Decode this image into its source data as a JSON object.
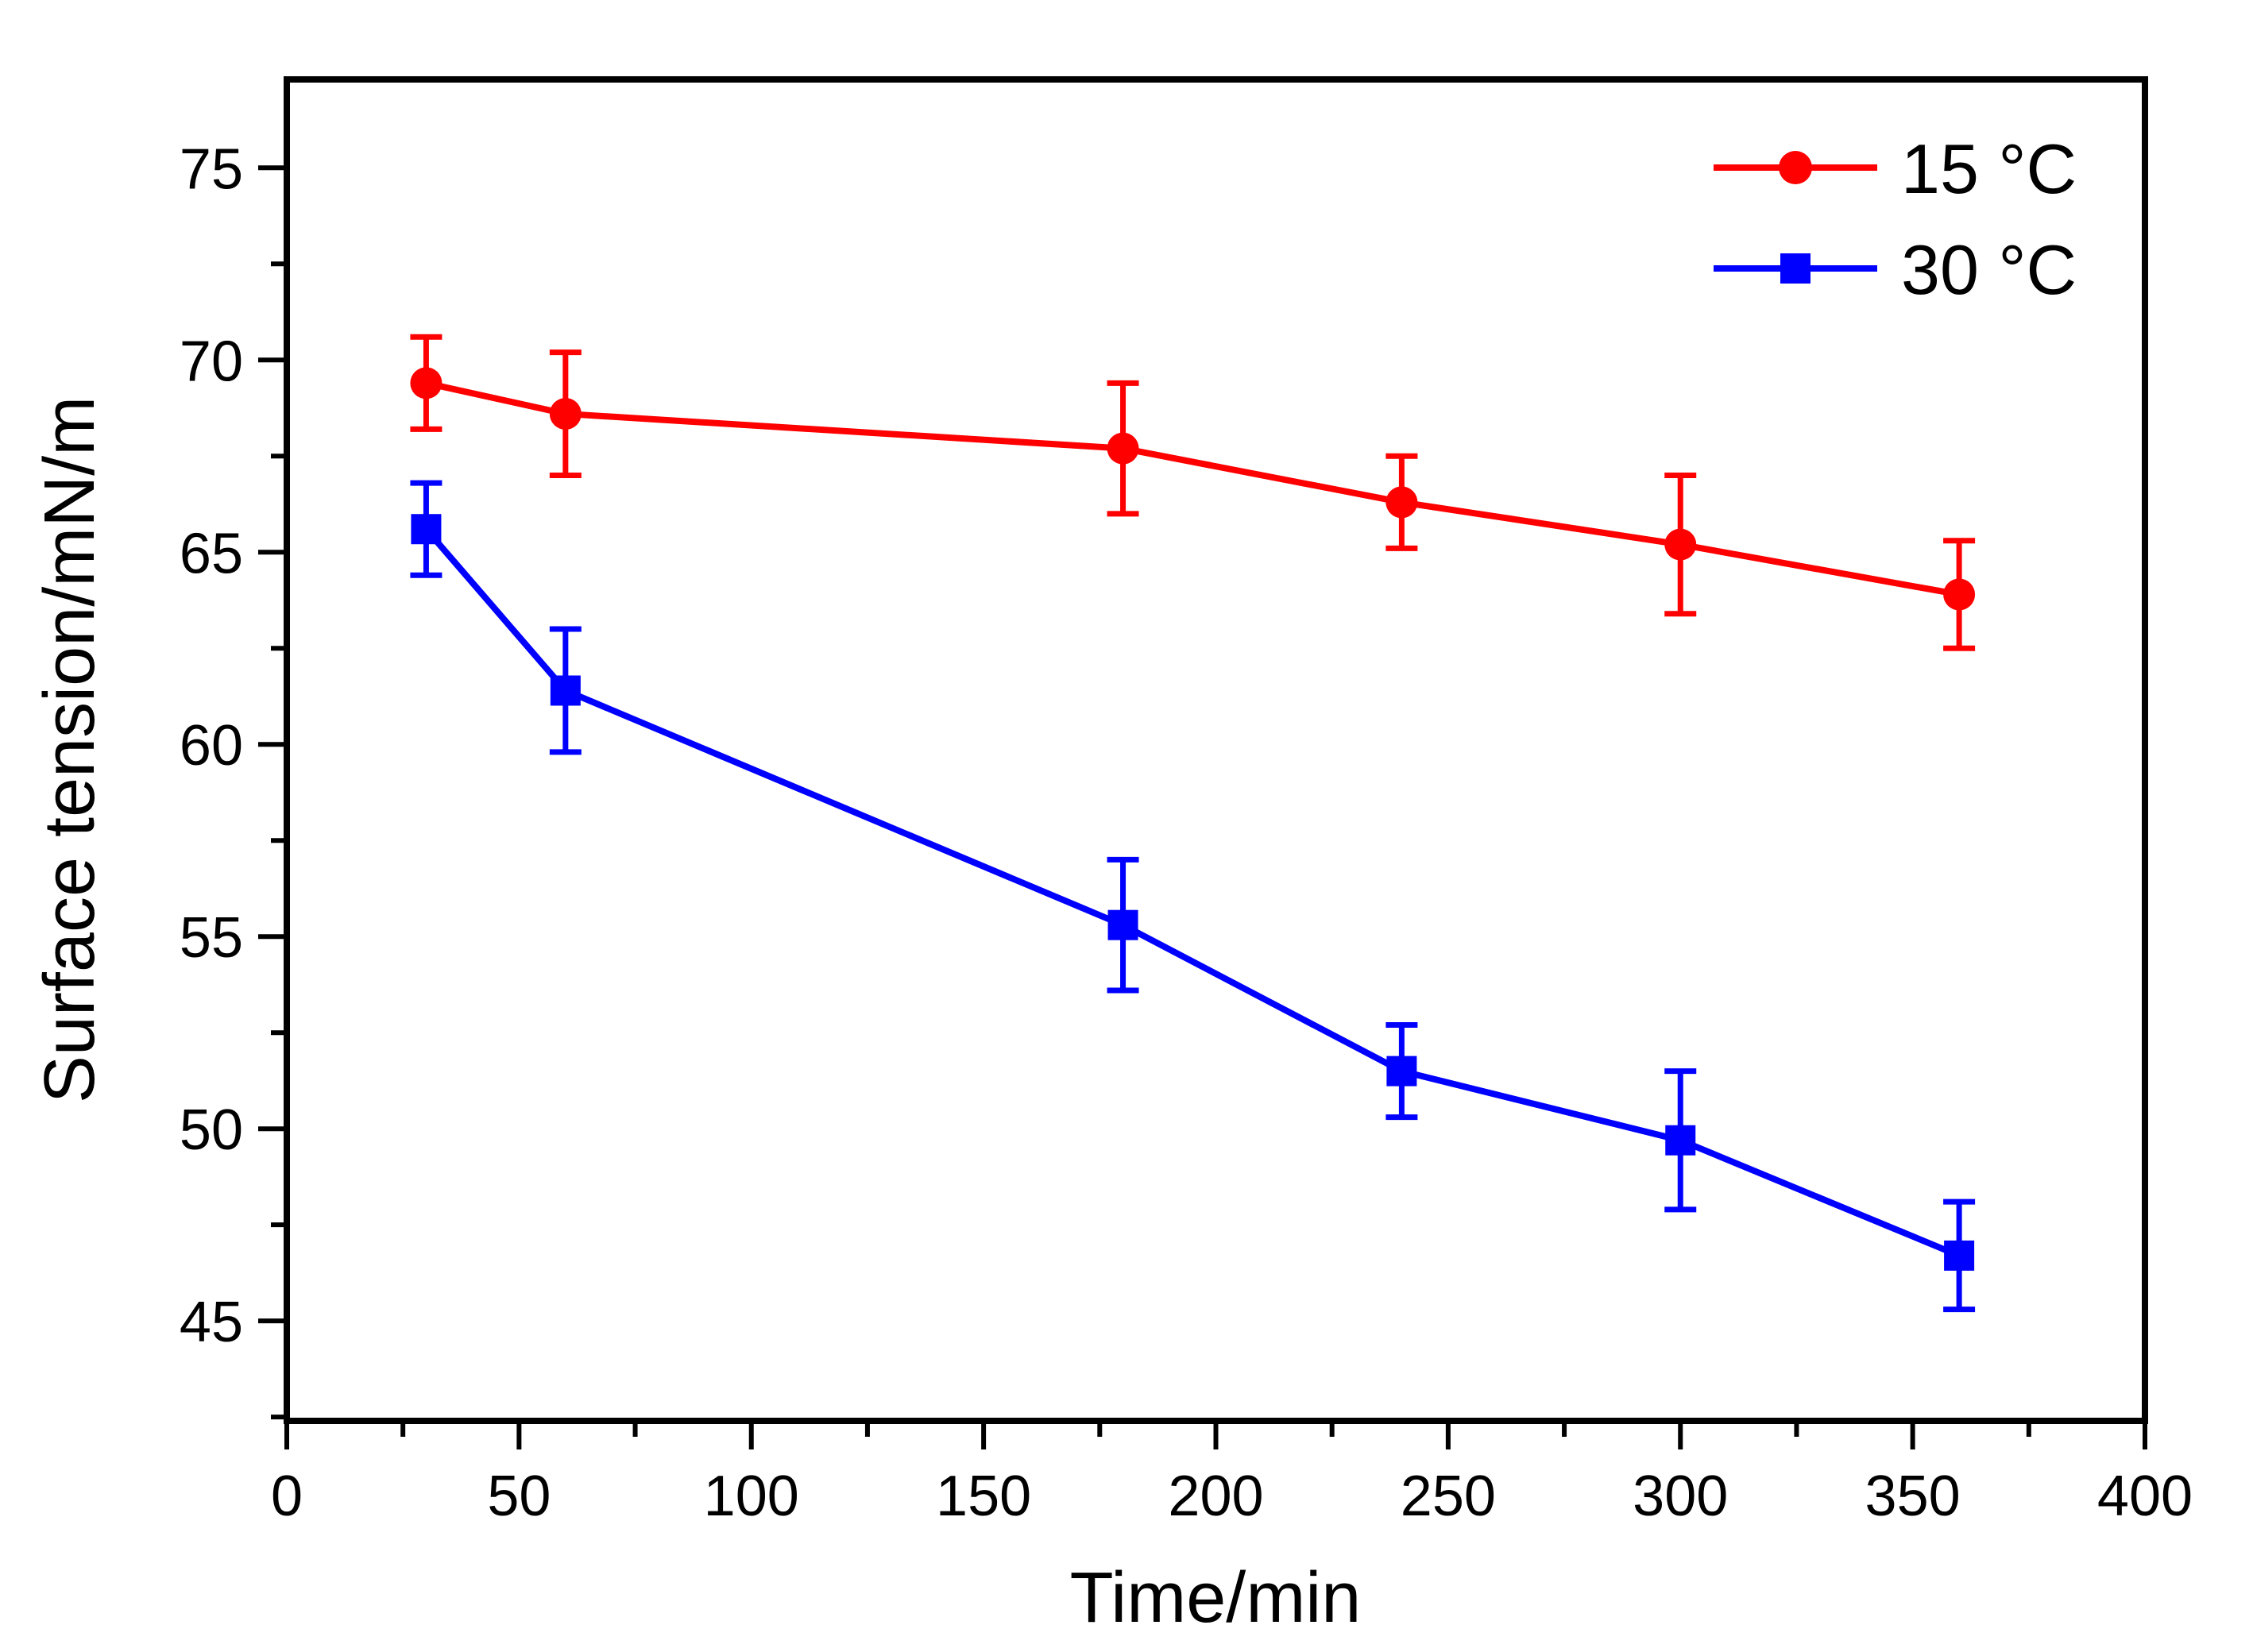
{
  "figure": {
    "background": "#ffffff",
    "axis_color": "#000000",
    "text_color": "#000000"
  },
  "chart_data": {
    "type": "line",
    "title": "",
    "xlabel": "Time/min",
    "ylabel": "Surface tension/mN/m",
    "xlim": [
      0,
      400
    ],
    "ylim": [
      42.4,
      77.3
    ],
    "x_major_ticks": [
      0,
      50,
      100,
      150,
      200,
      250,
      300,
      350,
      400
    ],
    "x_minor_step": 25,
    "y_major_ticks": [
      45,
      50,
      55,
      60,
      65,
      70,
      75
    ],
    "y_minor_step": 2.5,
    "grid": false,
    "frame": true,
    "tick_direction": "out",
    "legend_position": "top-right-inside",
    "x": [
      30,
      60,
      180,
      240,
      300,
      360
    ],
    "series": [
      {
        "name": "15 °C",
        "color": "#ff0000",
        "marker": "circle",
        "values": [
          69.4,
          68.6,
          67.7,
          66.3,
          65.2,
          63.9
        ],
        "errors": [
          1.2,
          1.6,
          1.7,
          1.2,
          1.8,
          1.4
        ]
      },
      {
        "name": "30 °C",
        "color": "#0000ff",
        "marker": "square",
        "values": [
          65.6,
          61.4,
          55.3,
          51.5,
          49.7,
          46.7
        ],
        "errors": [
          1.2,
          1.6,
          1.7,
          1.2,
          1.8,
          1.4
        ]
      }
    ]
  }
}
